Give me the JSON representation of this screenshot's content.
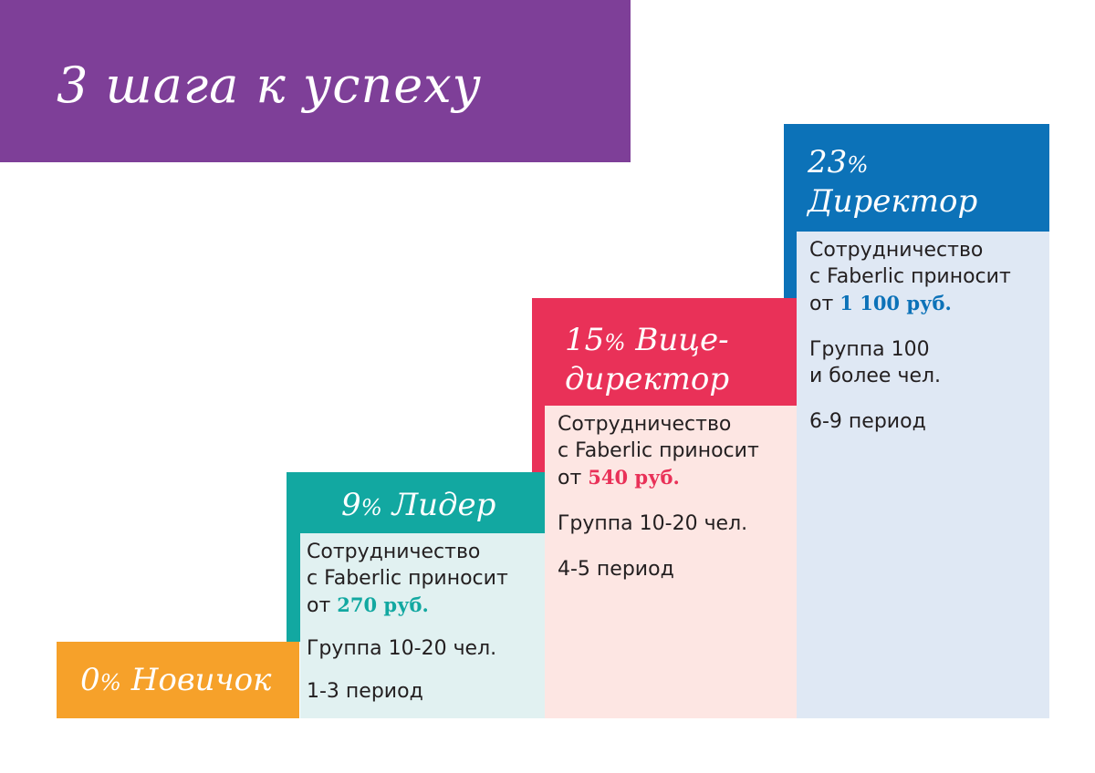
{
  "title": "3 шага к успеху",
  "colors": {
    "banner": "#7e3f98",
    "novice": "#f6a12a",
    "leader": "#12a8a1",
    "vice_director": "#e93158",
    "director": "#0c72b8"
  },
  "steps": [
    {
      "percent": "0",
      "pct_sign": "%",
      "title": "Новичок"
    },
    {
      "percent": "9",
      "pct_sign": "%",
      "title": "Лидер",
      "line1": "Сотрудничество",
      "line2": "с Faberlic приносит",
      "from": "от",
      "amount": "270 руб.",
      "group": "Группа 10-20 чел.",
      "period": "1-3 период"
    },
    {
      "percent": "15",
      "pct_sign": "%",
      "title_a": "Вице-",
      "title_b": "директор",
      "line1": "Сотрудничество",
      "line2": "с Faberlic приносит",
      "from": "от",
      "amount": "540 руб.",
      "group": "Группа 10-20 чел.",
      "period": "4-5 период"
    },
    {
      "percent": "23",
      "pct_sign": "%",
      "title": "Директор",
      "line1": "Сотрудничество",
      "line2": "с Faberlic приносит",
      "from": "от",
      "amount": "1 100 руб.",
      "group_a": "Группа 100",
      "group_b": "и более чел.",
      "period": "6-9 период"
    }
  ]
}
